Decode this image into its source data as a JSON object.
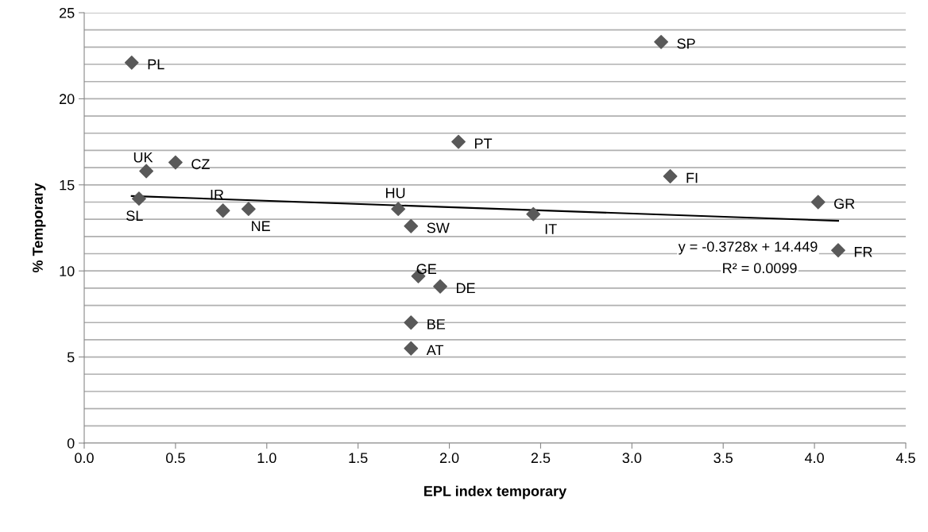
{
  "chart_data": {
    "type": "scatter",
    "xlabel": "EPL index temporary",
    "ylabel": "% Temporary",
    "series": [
      {
        "color": "#595959",
        "marker": "diamond",
        "x": [
          0.26,
          0.34,
          0.5,
          0.3,
          0.76,
          0.9,
          1.72,
          1.79,
          2.05,
          3.16,
          3.21,
          4.02,
          2.46,
          4.13,
          1.83,
          1.95,
          1.79,
          1.79
        ],
        "values": [
          22.1,
          15.8,
          16.3,
          14.2,
          13.5,
          13.6,
          13.6,
          12.6,
          17.5,
          23.3,
          15.5,
          14.0,
          13.3,
          11.2,
          9.7,
          9.1,
          7.0,
          5.5
        ]
      },
      {
        "type": "line",
        "color": "#000000",
        "marker": "none",
        "line_style": "solid",
        "x": [
          0.26,
          4.13
        ],
        "values": [
          14.35,
          12.91
        ]
      }
    ],
    "annotations": [
      {
        "text": "PL",
        "x": 0.26,
        "y": 22.1
      },
      {
        "text": "UK",
        "x": 0.34,
        "y": 15.8
      },
      {
        "text": "CZ",
        "x": 0.5,
        "y": 16.3
      },
      {
        "text": "SL",
        "x": 0.3,
        "y": 14.2
      },
      {
        "text": "IR",
        "x": 0.76,
        "y": 13.5
      },
      {
        "text": "NE",
        "x": 0.9,
        "y": 13.6
      },
      {
        "text": "HU",
        "x": 1.72,
        "y": 13.6
      },
      {
        "text": "SW",
        "x": 1.79,
        "y": 12.6
      },
      {
        "text": "PT",
        "x": 2.05,
        "y": 17.5
      },
      {
        "text": "SP",
        "x": 3.16,
        "y": 23.3
      },
      {
        "text": "FI",
        "x": 3.21,
        "y": 15.5
      },
      {
        "text": "GR",
        "x": 4.02,
        "y": 14.0
      },
      {
        "text": "IT",
        "x": 2.46,
        "y": 13.3
      },
      {
        "text": "FR",
        "x": 4.13,
        "y": 11.2
      },
      {
        "text": "GE",
        "x": 1.83,
        "y": 9.7
      },
      {
        "text": "DE",
        "x": 1.95,
        "y": 9.1
      },
      {
        "text": "BE",
        "x": 1.79,
        "y": 7.0
      },
      {
        "text": "AT",
        "x": 1.79,
        "y": 5.5
      },
      "y = -0.3728x + 14.449",
      "R² = 0.0099"
    ],
    "xlim": [
      0,
      4.5
    ],
    "xticks": [
      {
        "value": 0,
        "label": "0.0"
      },
      {
        "value": 0.5,
        "label": "0.5"
      },
      {
        "value": 1,
        "label": "1.0"
      },
      {
        "value": 1.5,
        "label": "1.5"
      },
      {
        "value": 2,
        "label": "2.0"
      },
      {
        "value": 2.5,
        "label": "2.5"
      },
      {
        "value": 3,
        "label": "3.0"
      },
      {
        "value": 3.5,
        "label": "3.5"
      },
      {
        "value": 4,
        "label": "4.0"
      },
      {
        "value": 4.5,
        "label": "4.5"
      }
    ],
    "ylim": [
      0,
      25
    ],
    "yticks": [
      0,
      {
        "value": 1,
        "label": null
      },
      {
        "value": 2,
        "label": null
      },
      {
        "value": 3,
        "label": null
      },
      {
        "value": 4,
        "label": null
      },
      5,
      {
        "value": 6,
        "label": null
      },
      {
        "value": 7,
        "label": null
      },
      {
        "value": 8,
        "label": null
      },
      {
        "value": 9,
        "label": null
      },
      10,
      {
        "value": 11,
        "label": null
      },
      {
        "value": 12,
        "label": null
      },
      {
        "value": 13,
        "label": null
      },
      {
        "value": 14,
        "label": null
      },
      15,
      {
        "value": 16,
        "label": null
      },
      {
        "value": 17,
        "label": null
      },
      {
        "value": 18,
        "label": null
      },
      {
        "value": 19,
        "label": null
      },
      20,
      {
        "value": 21,
        "label": null
      },
      {
        "value": 22,
        "label": null
      },
      {
        "value": 23,
        "label": null
      },
      {
        "value": 24,
        "label": null
      },
      25
    ],
    "grid": "y",
    "legend": false
  }
}
